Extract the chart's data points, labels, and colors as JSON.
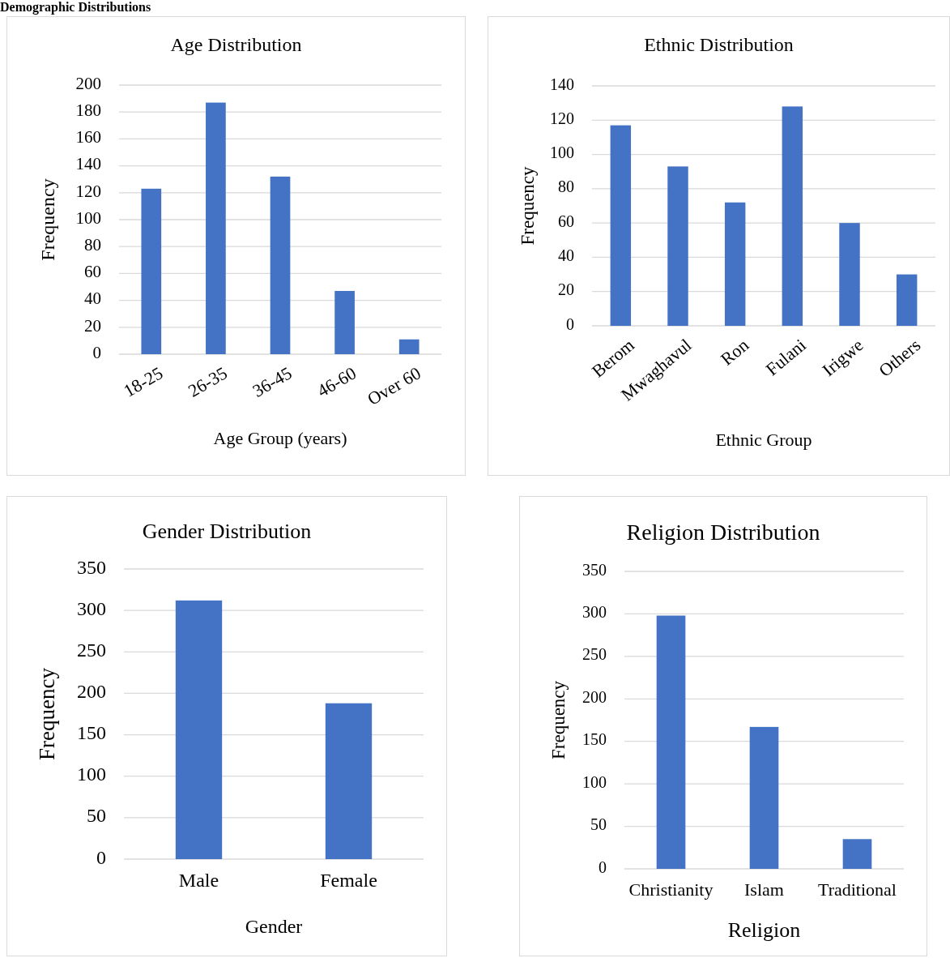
{
  "chart_data": [
    {
      "type": "bar",
      "title": "Age Distribution",
      "xlabel": "Age Group (years)",
      "ylabel": "Frequency",
      "categories": [
        "18-25",
        "26-35",
        "36-45",
        "46-60",
        "Over 60"
      ],
      "values": [
        123,
        187,
        132,
        47,
        11
      ],
      "color": "#4472c4",
      "ylim": [
        0,
        200
      ],
      "yticks": [
        0,
        20,
        40,
        60,
        80,
        100,
        120,
        140,
        160,
        180,
        200
      ],
      "grid": "y",
      "annotations": [
        "Demographic Distributions"
      ]
    },
    {
      "type": "bar",
      "title": "Ethnic Distribution",
      "xlabel": "Ethnic Group",
      "ylabel": "Frequency",
      "categories": [
        "Berom",
        "Mwaghavul",
        "Ron",
        "Fulani",
        "Irigwe",
        "Others"
      ],
      "values": [
        117,
        93,
        72,
        128,
        60,
        30
      ],
      "color": "#4472c4",
      "ylim": [
        0,
        140
      ],
      "yticks": [
        0,
        20,
        40,
        60,
        80,
        100,
        120,
        140
      ],
      "grid": "y"
    },
    {
      "type": "bar",
      "title": "Gender Distribution",
      "xlabel": "Gender",
      "ylabel": "Frequency",
      "categories": [
        "Male",
        "Female"
      ],
      "values": [
        312,
        188
      ],
      "color": "#4472c4",
      "ylim": [
        0,
        350
      ],
      "yticks": [
        0,
        50,
        100,
        150,
        200,
        250,
        300,
        350
      ],
      "grid": "y"
    },
    {
      "type": "bar",
      "title": "Religion Distribution",
      "xlabel": "Religion",
      "ylabel": "Frequency",
      "categories": [
        "Christianity",
        "Islam",
        "Traditional"
      ],
      "values": [
        298,
        167,
        35
      ],
      "color": "#4472c4",
      "ylim": [
        0,
        350
      ],
      "yticks": [
        0,
        50,
        100,
        150,
        200,
        250,
        300,
        350
      ],
      "grid": "y"
    }
  ]
}
